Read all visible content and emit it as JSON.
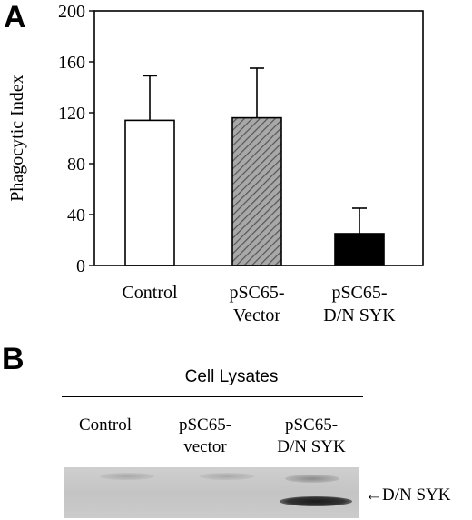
{
  "panel_a_label": "A",
  "panel_b_label": "B",
  "chart_data": {
    "type": "bar",
    "title": "",
    "xlabel": "",
    "ylabel": "Phagocytic Index",
    "ylim": [
      0,
      200
    ],
    "yticks": [
      0,
      40,
      80,
      120,
      160,
      200
    ],
    "grid": false,
    "categories": [
      "Control",
      "pSC65-\nVector",
      "pSC65-\nD/N SYK"
    ],
    "values": [
      114,
      116,
      25
    ],
    "errors": [
      35,
      39,
      20
    ],
    "bar_styles": [
      {
        "fill": "#ffffff",
        "pattern": "none"
      },
      {
        "fill": "#9a9a9a",
        "pattern": "diagonal-hatch"
      },
      {
        "fill": "#000000",
        "pattern": "none"
      }
    ]
  },
  "blot": {
    "title": "Cell Lysates",
    "lanes": [
      {
        "line1": "Control",
        "line2": ""
      },
      {
        "line1": "pSC65-",
        "line2": "vector"
      },
      {
        "line1": "pSC65-",
        "line2": "D/N SYK"
      }
    ],
    "band_label": "←D/N SYK"
  }
}
